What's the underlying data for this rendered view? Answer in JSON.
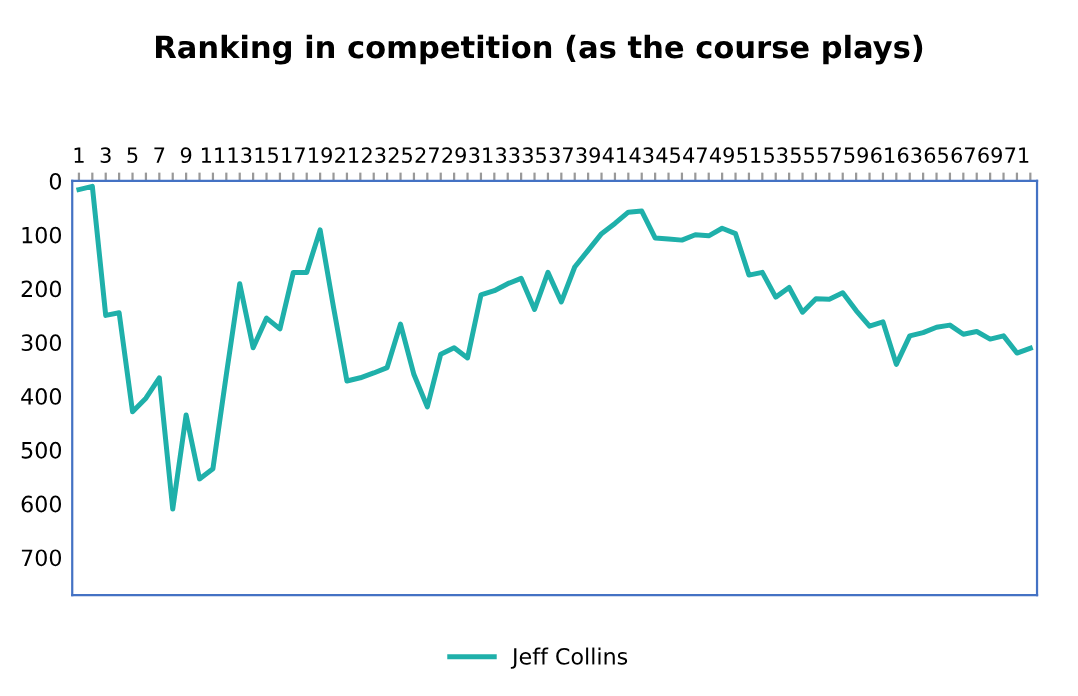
{
  "chart_data": {
    "type": "line",
    "title": "Ranking in competition (as the course plays)",
    "categories": [
      "1",
      null,
      "3",
      null,
      "5",
      null,
      "7",
      null,
      "9",
      null,
      "11",
      null,
      "13",
      null,
      "15",
      null,
      "17",
      null,
      "19",
      null,
      "21",
      null,
      "23",
      null,
      "25",
      null,
      "27",
      null,
      "29",
      null,
      "31",
      null,
      "33",
      null,
      "35",
      null,
      "37",
      null,
      "39",
      null,
      "41",
      null,
      "43",
      null,
      "45",
      null,
      "47",
      null,
      "49",
      null,
      "51",
      null,
      "53",
      null,
      "55",
      null,
      "57",
      null,
      "59",
      null,
      "61",
      null,
      "63",
      null,
      "65",
      null,
      "67",
      null,
      "69",
      null,
      "71",
      null
    ],
    "series": [
      {
        "name": "Jeff Collins",
        "color": "#1fb0aa",
        "values": [
          16,
          10,
          250,
          245,
          429,
          404,
          366,
          610,
          435,
          554,
          535,
          360,
          191,
          310,
          255,
          275,
          170,
          170,
          91,
          235,
          372,
          366,
          357,
          347,
          266,
          360,
          420,
          322,
          310,
          329,
          212,
          204,
          191,
          181,
          239,
          170,
          225,
          160,
          129,
          98,
          79,
          58,
          56,
          106,
          108,
          110,
          100,
          102,
          88,
          98,
          175,
          170,
          216,
          198,
          244,
          219,
          220,
          208,
          241,
          270,
          262,
          341,
          288,
          282,
          272,
          268,
          285,
          280,
          294,
          288,
          320,
          311
        ]
      }
    ],
    "ylim": [
      770,
      0
    ],
    "yticks": [
      0,
      100,
      200,
      300,
      400,
      500,
      600,
      700
    ],
    "grid": false,
    "legend": "bottom",
    "marker": "none",
    "line_style": "solid"
  }
}
